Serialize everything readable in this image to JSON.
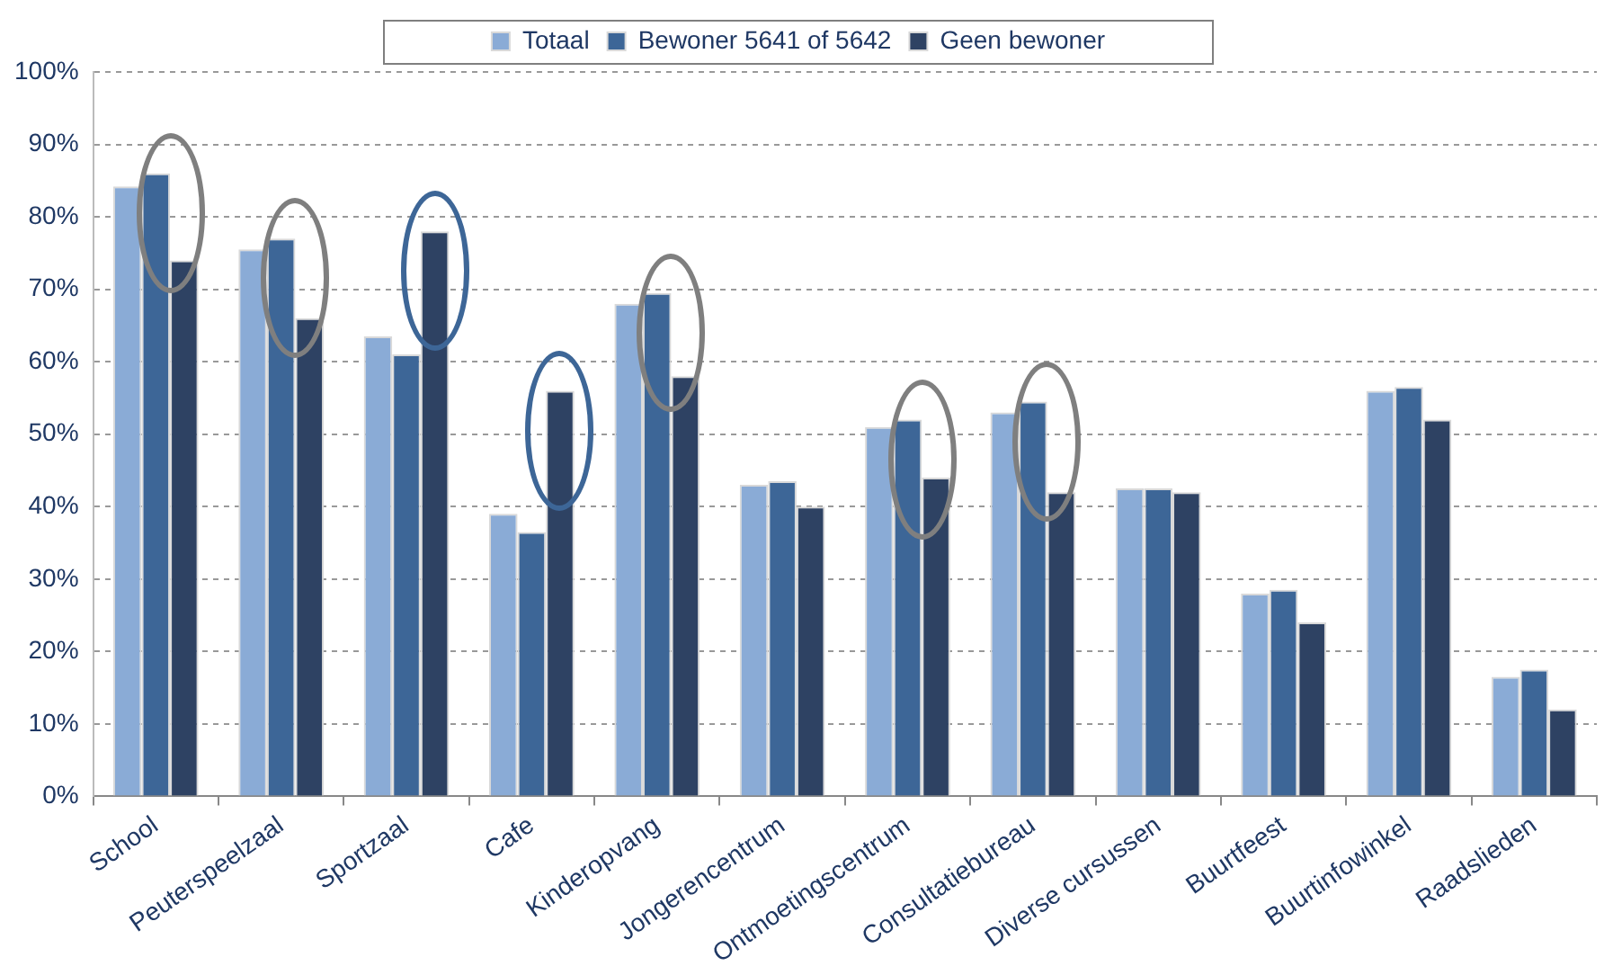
{
  "chart_data": {
    "type": "bar",
    "categories": [
      "School",
      "Peuterspeelzaal",
      "Sportzaal",
      "Cafe",
      "Kinderopvang",
      "Jongerencentrum",
      "Ontmoetingscentrum",
      "Consultatiebureau",
      "Diverse cursussen",
      "Buurtfeest",
      "Buurtinfowinkel",
      "Raadslieden"
    ],
    "series": [
      {
        "name": "Totaal",
        "color": "#8aabd6",
        "values": [
          84.2,
          75.5,
          63.5,
          39,
          68,
          43,
          51,
          53,
          42.5,
          28,
          56,
          16.5
        ]
      },
      {
        "name": "Bewoner 5641 of 5642",
        "color": "#3d6697",
        "values": [
          86,
          77,
          61,
          36.5,
          69.5,
          43.5,
          52,
          54.5,
          42.5,
          28.5,
          56.5,
          17.5
        ]
      },
      {
        "name": "Geen bewoner",
        "color": "#2e4263",
        "values": [
          74,
          66,
          78,
          56,
          58,
          40,
          44,
          42,
          42,
          24,
          52,
          12
        ]
      }
    ],
    "ylim": [
      0,
      100
    ],
    "yticks": [
      {
        "value": 0,
        "label": "0%"
      },
      {
        "value": 10,
        "label": "10%"
      },
      {
        "value": 20,
        "label": "20%"
      },
      {
        "value": 30,
        "label": "30%"
      },
      {
        "value": 40,
        "label": "40%"
      },
      {
        "value": 50,
        "label": "50%"
      },
      {
        "value": 60,
        "label": "60%"
      },
      {
        "value": 70,
        "label": "70%"
      },
      {
        "value": 80,
        "label": "80%"
      },
      {
        "value": 90,
        "label": "90%"
      },
      {
        "value": 100,
        "label": "100%"
      }
    ],
    "grid": "y",
    "legend": "top"
  }
}
